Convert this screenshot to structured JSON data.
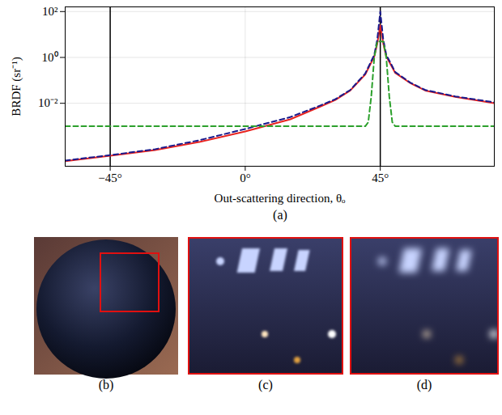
{
  "chart_data": {
    "type": "line",
    "caption": "(a)",
    "x_label": "Out-scattering direction, θₒ",
    "y_label": "BRDF (sr⁻¹)",
    "log": "y",
    "grid": true,
    "xlim": [
      -60,
      83
    ],
    "xticks": [
      {
        "value": -45,
        "label": "−45°"
      },
      {
        "value": 0,
        "label": "0°"
      },
      {
        "value": 45,
        "label": "45°"
      }
    ],
    "ylim": [
      1.8e-05,
      160
    ],
    "yticks": [
      {
        "value": 0.01,
        "label": "10⁻²"
      },
      {
        "value": 1,
        "label": "10⁰"
      },
      {
        "value": 100,
        "label": "10²"
      }
    ],
    "vlines": [
      -45,
      45
    ],
    "series": [
      {
        "color": "#e8231f",
        "line_style": "solid",
        "x": [
          -60,
          -45,
          -30,
          -15,
          0,
          15,
          25,
          30,
          35,
          40,
          43,
          44,
          45,
          46,
          47,
          50,
          55,
          60,
          70,
          83
        ],
        "values": [
          3e-05,
          5.2e-05,
          9.1e-05,
          0.00021,
          0.00059,
          0.002,
          0.0072,
          0.014,
          0.036,
          0.18,
          1.1,
          4,
          25,
          4,
          1.1,
          0.21,
          0.076,
          0.036,
          0.019,
          0.01
        ]
      },
      {
        "color": "#1a1a8c",
        "line_style": "dashed",
        "x": [
          -60,
          -45,
          -30,
          -15,
          0,
          15,
          25,
          30,
          35,
          40,
          43,
          44,
          45,
          46,
          47,
          50,
          55,
          60,
          70,
          83
        ],
        "values": [
          3.2e-05,
          5.5e-05,
          0.0001,
          0.00025,
          0.00076,
          0.0025,
          0.008,
          0.015,
          0.038,
          0.2,
          1.3,
          6,
          100,
          6,
          1.3,
          0.23,
          0.08,
          0.038,
          0.02,
          0.011
        ]
      },
      {
        "color": "#2ca02c",
        "line_style": "dashed",
        "x": [
          -60,
          40,
          41,
          42,
          43,
          44,
          46,
          47,
          48,
          49,
          50,
          83
        ],
        "values": [
          0.001,
          0.001,
          0.0015,
          0.02,
          1,
          5,
          5,
          1,
          0.02,
          0.0015,
          0.001,
          0.001
        ]
      }
    ]
  },
  "panels": [
    {
      "caption": "(b)"
    },
    {
      "caption": "(c)"
    },
    {
      "caption": "(d)"
    }
  ]
}
